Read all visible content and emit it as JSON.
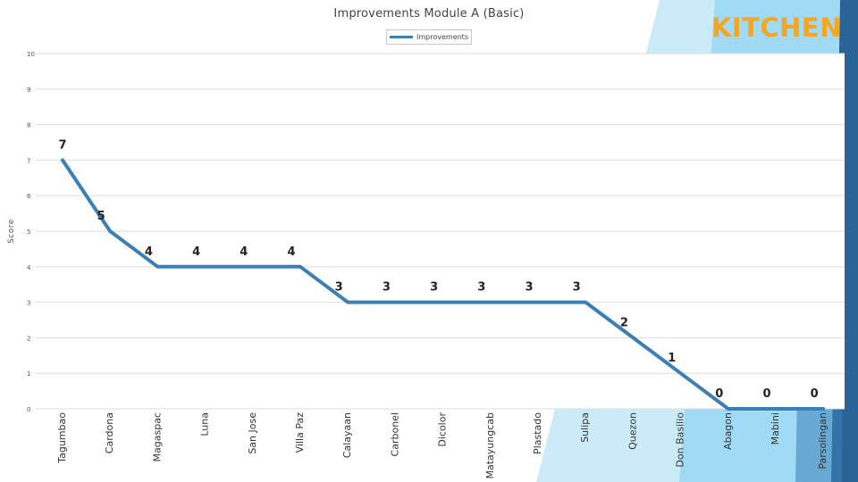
{
  "header": {
    "title": "Improvements Module A (Basic)",
    "brand": "KITCHEN"
  },
  "colors": {
    "line": "#3a7fb8",
    "grid": "#dedede",
    "brand": "#f5a623",
    "accent_light": "#6dc6ef",
    "accent_dark": "#2a6496"
  },
  "chart_data": {
    "type": "line",
    "title": "Improvements Module A (Basic)",
    "xlabel": "",
    "ylabel": "Score",
    "ylim": [
      0,
      10
    ],
    "yticks": [
      0,
      1,
      2,
      3,
      4,
      5,
      6,
      7,
      8,
      9,
      10
    ],
    "grid": true,
    "legend_position": "top-center",
    "categories": [
      "Tagumbao",
      "Cardona",
      "Magaspac",
      "Luna",
      "San Jose",
      "Villa Paz",
      "Calayaan",
      "Carbonel",
      "Dicolor",
      "Matayungcab",
      "Plastado",
      "Sulipa",
      "Quezon",
      "Don Basilio",
      "Abagon",
      "Mabini",
      "Parsolingan"
    ],
    "series": [
      {
        "name": "Improvements",
        "values": [
          7,
          5,
          4,
          4,
          4,
          4,
          3,
          3,
          3,
          3,
          3,
          3,
          2,
          1,
          0,
          0,
          0
        ]
      }
    ]
  }
}
